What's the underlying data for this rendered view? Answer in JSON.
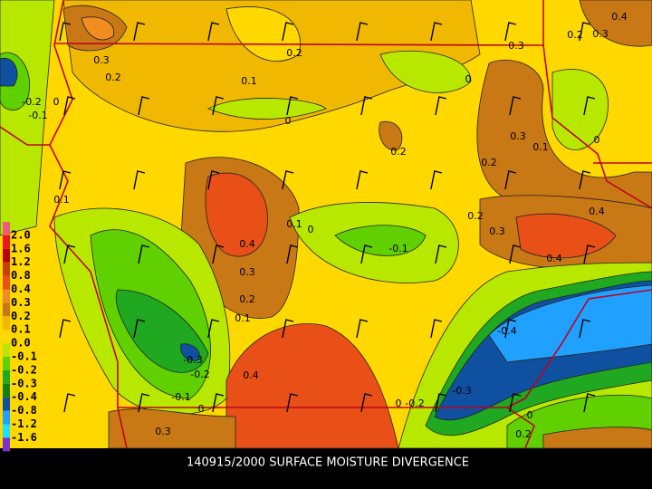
{
  "title": "140915/2000 SURFACE MOISTURE DIVERGENCE",
  "legend": {
    "labels": [
      "2.0",
      "1.6",
      "1.2",
      "0.8",
      "0.4",
      "0.3",
      "0.2",
      "0.1",
      "0.0",
      "-0.1",
      "-0.2",
      "-0.3",
      "-0.4",
      "-0.8",
      "-1.2",
      "-1.6"
    ],
    "colors": [
      "#f05c78",
      "#e81818",
      "#b80000",
      "#c84000",
      "#e85018",
      "#f08c20",
      "#c87814",
      "#f0b800",
      "#ffd800",
      "#b8e800",
      "#60d000",
      "#20a820",
      "#108018",
      "#1050a0",
      "#20a0ff",
      "#20e0ff",
      "#8030d0"
    ]
  },
  "contour_labels": [
    "0.3",
    "0.2",
    "-0.2",
    "-0.1",
    "0",
    "0.2",
    "0.1",
    "0",
    "0",
    "0.3",
    "0.2",
    "0.3",
    "0.4",
    "0.3",
    "0.1",
    "0",
    "0.2",
    "0.2",
    "0.1",
    "0.2",
    "0.4",
    "0.3",
    "0.1",
    "0",
    "-0.1",
    "0.4",
    "0.4",
    "0.3",
    "0.2",
    "0.1",
    "-0.4",
    "-0.3",
    "-0.2",
    "0.4",
    "-0.1",
    "0",
    "-0.3",
    "-0.2",
    "0",
    "0.3",
    "0",
    "0.2"
  ]
}
